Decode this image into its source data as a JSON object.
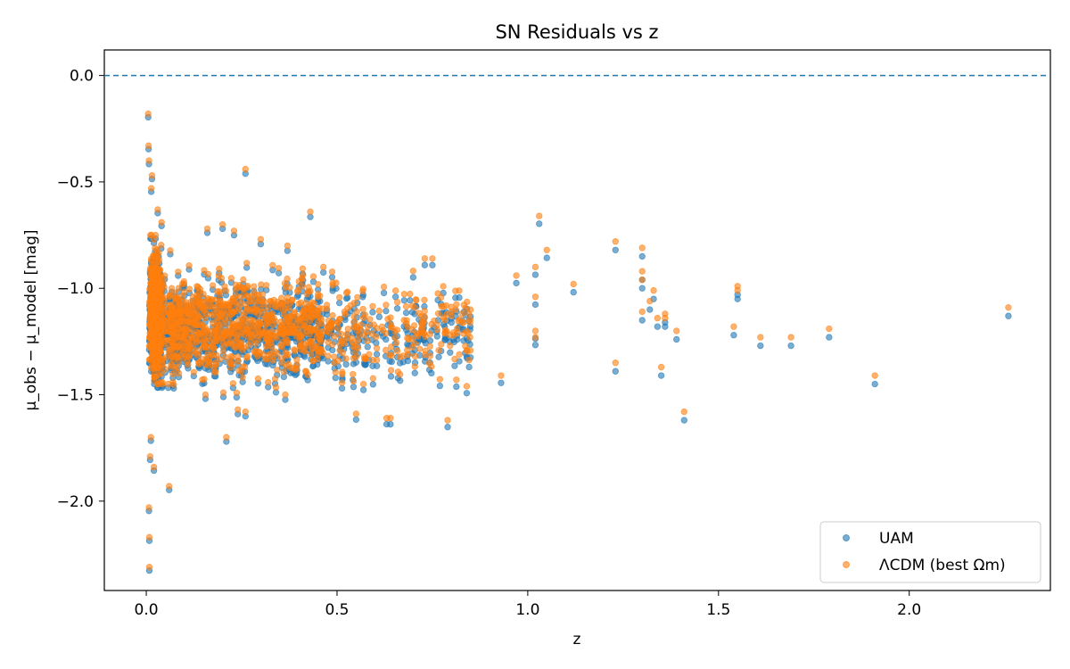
{
  "chart_data": {
    "type": "scatter",
    "title": "SN Residuals vs z",
    "xlabel": "z",
    "ylabel": "μ_obs − μ_model [mag]",
    "xlim": [
      -0.11,
      2.37
    ],
    "ylim": [
      -2.42,
      0.12
    ],
    "xticks": [
      0.0,
      0.5,
      1.0,
      1.5,
      2.0
    ],
    "xtick_labels": [
      "0.0",
      "0.5",
      "1.0",
      "1.5",
      "2.0"
    ],
    "yticks": [
      0.0,
      -0.5,
      -1.0,
      -1.5,
      -2.0
    ],
    "ytick_labels": [
      "0.0",
      "−0.5",
      "−1.0",
      "−1.5",
      "−2.0"
    ],
    "grid": false,
    "legend_position": "lower-right",
    "reference_line": {
      "y": 0.0,
      "style": "dashed",
      "color": "#1f77b4"
    },
    "series": [
      {
        "name": "UAM",
        "color": "#1f77b4",
        "offset_from_reference": -0.04,
        "points": [
          [
            0.005,
            -0.18
          ],
          [
            0.006,
            -0.33
          ],
          [
            0.007,
            -0.4
          ],
          [
            0.008,
            -2.31
          ],
          [
            0.008,
            -2.17
          ],
          [
            0.007,
            -2.03
          ],
          [
            0.01,
            -1.79
          ],
          [
            0.012,
            -1.7
          ],
          [
            0.02,
            -1.84
          ],
          [
            0.06,
            -1.93
          ],
          [
            0.21,
            -1.7
          ],
          [
            0.24,
            -1.57
          ],
          [
            0.26,
            -1.58
          ],
          [
            0.26,
            -0.44
          ],
          [
            0.43,
            -0.64
          ],
          [
            0.55,
            -1.59
          ],
          [
            0.63,
            -1.61
          ],
          [
            0.64,
            -1.61
          ],
          [
            0.79,
            -1.62
          ],
          [
            0.03,
            -0.63
          ],
          [
            0.04,
            -0.69
          ],
          [
            0.015,
            -0.47
          ],
          [
            0.013,
            -0.53
          ],
          [
            0.16,
            -0.72
          ],
          [
            0.2,
            -0.7
          ],
          [
            0.23,
            -0.73
          ],
          [
            0.3,
            -0.77
          ],
          [
            0.37,
            -0.8
          ],
          [
            0.73,
            -0.86
          ],
          [
            0.75,
            -0.86
          ],
          [
            0.97,
            -0.94
          ],
          [
            1.02,
            -1.04
          ],
          [
            1.02,
            -0.9
          ],
          [
            1.03,
            -0.66
          ],
          [
            1.05,
            -0.82
          ],
          [
            1.12,
            -0.98
          ],
          [
            1.02,
            -1.2
          ],
          [
            1.02,
            -1.23
          ],
          [
            1.23,
            -1.35
          ],
          [
            1.23,
            -0.78
          ],
          [
            1.3,
            -0.81
          ],
          [
            1.3,
            -0.92
          ],
          [
            1.3,
            -0.96
          ],
          [
            1.3,
            -1.11
          ],
          [
            1.32,
            -1.06
          ],
          [
            1.33,
            -1.01
          ],
          [
            1.34,
            -1.14
          ],
          [
            1.35,
            -1.37
          ],
          [
            1.36,
            -1.12
          ],
          [
            1.36,
            -1.14
          ],
          [
            1.39,
            -1.2
          ],
          [
            1.41,
            -1.58
          ],
          [
            1.54,
            -1.18
          ],
          [
            1.55,
            -0.99
          ],
          [
            1.55,
            -1.01
          ],
          [
            1.61,
            -1.23
          ],
          [
            1.69,
            -1.23
          ],
          [
            1.79,
            -1.19
          ],
          [
            1.91,
            -1.41
          ],
          [
            2.26,
            -1.09
          ],
          [
            0.93,
            -1.41
          ],
          [
            0.84,
            -1.46
          ],
          [
            0.85,
            -1.1
          ],
          [
            0.8,
            -1.11
          ],
          [
            0.84,
            -1.29
          ]
        ],
        "dense_clusters": [
          {
            "x": [
              0.0,
              0.055
            ],
            "y": [
              -1.45,
              -0.75
            ],
            "count": 520,
            "center_y": -1.12,
            "spread_y": 0.14
          },
          {
            "x": [
              0.06,
              0.45
            ],
            "y": [
              -1.5,
              -0.8
            ],
            "count": 760,
            "center_y": -1.18,
            "spread_y": 0.11
          },
          {
            "x": [
              0.45,
              0.85
            ],
            "y": [
              -1.45,
              -0.9
            ],
            "count": 260,
            "center_y": -1.18,
            "spread_y": 0.1
          }
        ]
      },
      {
        "name": "ΛCDM (best Ωm)",
        "color": "#ff7f0e",
        "offset_from_reference": 0.0,
        "points": [
          [
            0.005,
            -0.18
          ],
          [
            0.006,
            -0.33
          ],
          [
            0.007,
            -0.4
          ],
          [
            0.008,
            -2.31
          ],
          [
            0.008,
            -2.17
          ],
          [
            0.007,
            -2.03
          ],
          [
            0.01,
            -1.79
          ],
          [
            0.012,
            -1.7
          ],
          [
            0.02,
            -1.84
          ],
          [
            0.06,
            -1.93
          ],
          [
            0.21,
            -1.7
          ],
          [
            0.24,
            -1.57
          ],
          [
            0.26,
            -1.58
          ],
          [
            0.26,
            -0.44
          ],
          [
            0.43,
            -0.64
          ],
          [
            0.55,
            -1.59
          ],
          [
            0.63,
            -1.61
          ],
          [
            0.64,
            -1.61
          ],
          [
            0.79,
            -1.62
          ],
          [
            0.03,
            -0.63
          ],
          [
            0.04,
            -0.69
          ],
          [
            0.015,
            -0.47
          ],
          [
            0.013,
            -0.53
          ],
          [
            0.16,
            -0.72
          ],
          [
            0.2,
            -0.7
          ],
          [
            0.23,
            -0.73
          ],
          [
            0.3,
            -0.77
          ],
          [
            0.37,
            -0.8
          ],
          [
            0.73,
            -0.86
          ],
          [
            0.75,
            -0.86
          ],
          [
            0.97,
            -0.94
          ],
          [
            1.02,
            -1.04
          ],
          [
            1.02,
            -0.9
          ],
          [
            1.03,
            -0.66
          ],
          [
            1.05,
            -0.82
          ],
          [
            1.12,
            -0.98
          ],
          [
            1.02,
            -1.2
          ],
          [
            1.02,
            -1.23
          ],
          [
            1.23,
            -1.35
          ],
          [
            1.23,
            -0.78
          ],
          [
            1.3,
            -0.81
          ],
          [
            1.3,
            -0.92
          ],
          [
            1.3,
            -0.96
          ],
          [
            1.3,
            -1.11
          ],
          [
            1.32,
            -1.06
          ],
          [
            1.33,
            -1.01
          ],
          [
            1.34,
            -1.14
          ],
          [
            1.35,
            -1.37
          ],
          [
            1.36,
            -1.12
          ],
          [
            1.36,
            -1.14
          ],
          [
            1.39,
            -1.2
          ],
          [
            1.41,
            -1.58
          ],
          [
            1.54,
            -1.18
          ],
          [
            1.55,
            -0.99
          ],
          [
            1.55,
            -1.01
          ],
          [
            1.61,
            -1.23
          ],
          [
            1.69,
            -1.23
          ],
          [
            1.79,
            -1.19
          ],
          [
            1.91,
            -1.41
          ],
          [
            2.26,
            -1.09
          ],
          [
            0.93,
            -1.41
          ],
          [
            0.84,
            -1.46
          ],
          [
            0.85,
            -1.1
          ],
          [
            0.8,
            -1.11
          ],
          [
            0.84,
            -1.29
          ]
        ],
        "dense_clusters": [
          {
            "x": [
              0.0,
              0.055
            ],
            "y": [
              -1.45,
              -0.75
            ],
            "count": 520,
            "center_y": -1.12,
            "spread_y": 0.14
          },
          {
            "x": [
              0.06,
              0.45
            ],
            "y": [
              -1.5,
              -0.8
            ],
            "count": 760,
            "center_y": -1.18,
            "spread_y": 0.11
          },
          {
            "x": [
              0.45,
              0.85
            ],
            "y": [
              -1.45,
              -0.9
            ],
            "count": 260,
            "center_y": -1.18,
            "spread_y": 0.1
          }
        ]
      }
    ]
  },
  "legend": {
    "items": [
      {
        "label": "UAM",
        "color": "#1f77b4"
      },
      {
        "label": "ΛCDM (best Ωm)",
        "color": "#ff7f0e"
      }
    ]
  }
}
